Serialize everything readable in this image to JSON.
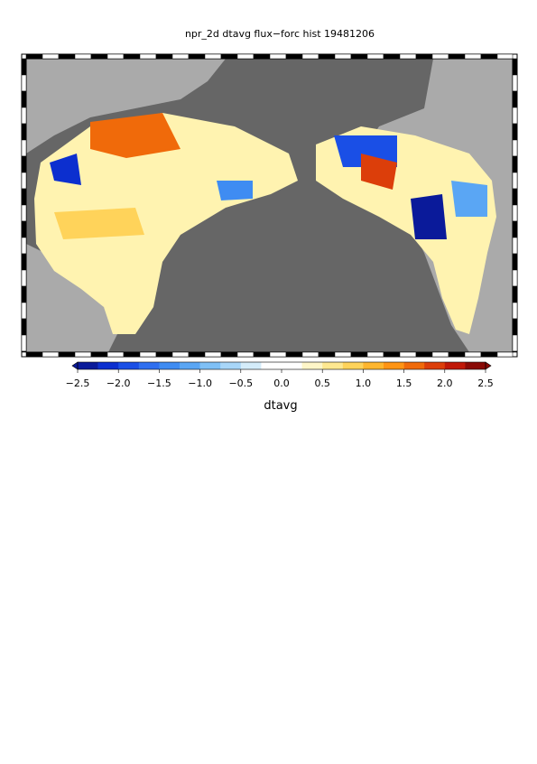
{
  "title": "npr_2d dtavg flux−forc hist 19481206",
  "colorbar": {
    "label": "dtavg",
    "range": [
      -2.5,
      2.5
    ],
    "ticks": [
      {
        "value": -2.5,
        "label": "−2.5"
      },
      {
        "value": -2.0,
        "label": "−2.0"
      },
      {
        "value": -1.5,
        "label": "−1.5"
      },
      {
        "value": -1.0,
        "label": "−1.0"
      },
      {
        "value": -0.5,
        "label": "−0.5"
      },
      {
        "value": 0,
        "label": "0.0"
      },
      0.5,
      {
        "value": 1,
        "label": "1.0"
      },
      1.5,
      {
        "value": 2,
        "label": "2.0"
      },
      2.5
    ],
    "colors": [
      "#0a1a9a",
      "#0c2fcf",
      "#1a4fe6",
      "#2f6ff0",
      "#3f8cf2",
      "#5aa6f4",
      "#7fc0f6",
      "#a8d6f8",
      "#d4ecfa",
      "#ffffff",
      "#ffffff",
      "#fff6c8",
      "#ffe890",
      "#ffd35a",
      "#ffb62e",
      "#ff9414",
      "#f06a0a",
      "#dc3e0a",
      "#c01808",
      "#8a0a06"
    ]
  }
}
